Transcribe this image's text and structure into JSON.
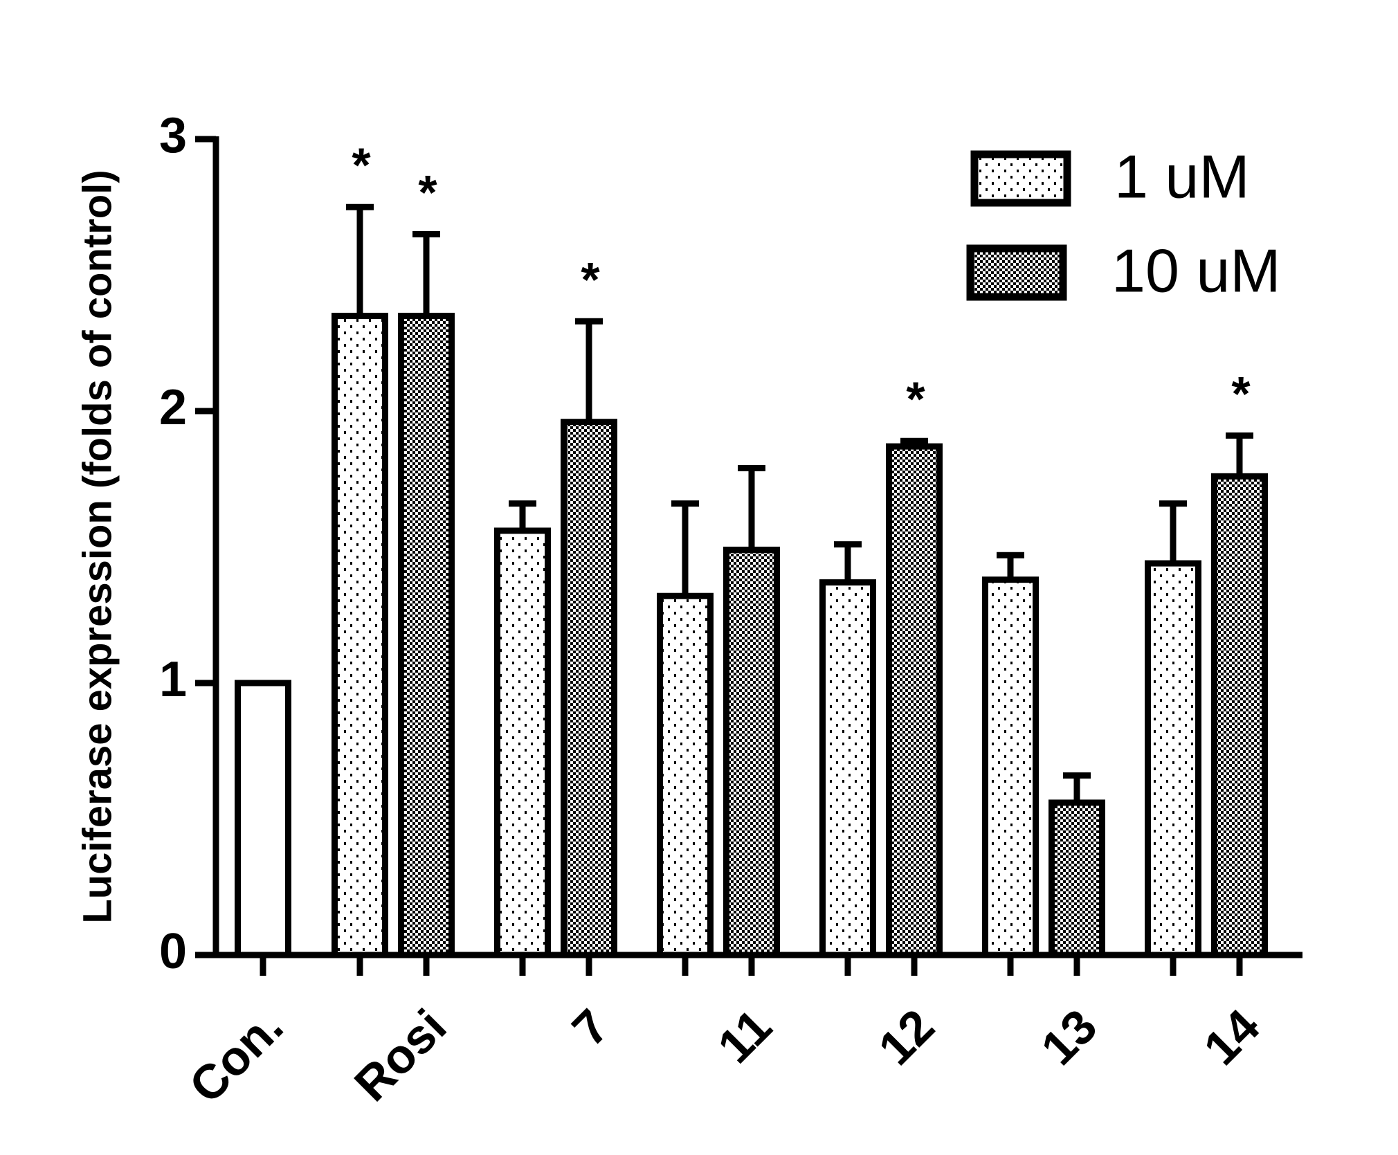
{
  "chart_data": {
    "type": "bar",
    "y_label": "Luciferase expression (folds of control)",
    "categories": [
      "Con.",
      "Rosi",
      "7",
      "11",
      "12",
      "13",
      "14"
    ],
    "control": {
      "value": 1,
      "color": "#ffffff"
    },
    "series": [
      {
        "name": "1 uM",
        "color": "#000000",
        "pattern": "dots",
        "values": [
          null,
          2.35,
          1.56,
          1.32,
          1.37,
          1.38,
          1.44
        ],
        "errors": [
          null,
          0.4,
          0.1,
          0.34,
          0.14,
          0.09,
          0.22
        ],
        "annotations": [
          null,
          "*",
          null,
          null,
          null,
          null,
          null
        ]
      },
      {
        "name": "10 uM",
        "color": "#000000",
        "pattern": "checker",
        "values": [
          null,
          2.35,
          1.96,
          1.49,
          1.87,
          0.56,
          1.76
        ],
        "errors": [
          null,
          0.3,
          0.37,
          0.3,
          0.02,
          0.1,
          0.15
        ],
        "annotations": [
          null,
          "*",
          "*",
          null,
          "*",
          null,
          "*"
        ]
      }
    ],
    "ylim": [
      0,
      3
    ],
    "yticks": [
      0,
      1,
      2,
      3
    ],
    "grid": false,
    "legend": "top-right"
  }
}
